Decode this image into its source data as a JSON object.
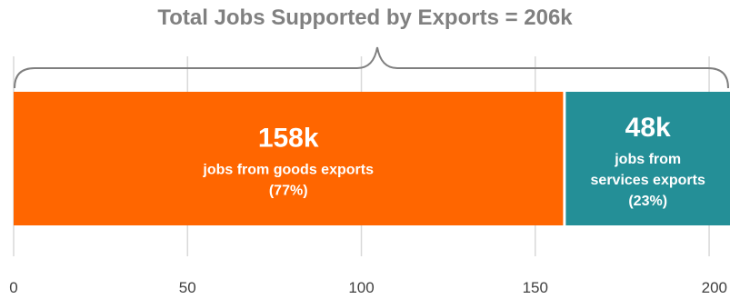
{
  "chart_data": {
    "type": "bar",
    "orientation": "horizontal-stacked",
    "title": "Total Jobs Supported by Exports = 206k",
    "xlabel": "",
    "ylabel": "",
    "xlim": [
      0,
      206
    ],
    "x_ticks": [
      "0",
      "50",
      "100",
      "150",
      "200"
    ],
    "grid": true,
    "segments": [
      {
        "name": "goods exports",
        "value": 158,
        "color": "#FF6600",
        "label_value": "158k",
        "label_lines": [
          "jobs from goods exports",
          "(77%)"
        ]
      },
      {
        "name": "services exports",
        "value": 48,
        "color": "#248F97",
        "label_value": "48k",
        "label_lines": [
          "jobs from",
          "services exports",
          "(23%)"
        ]
      }
    ],
    "bracket_color": "#7F7F7F",
    "gridline_color": "#D9D9D9"
  }
}
